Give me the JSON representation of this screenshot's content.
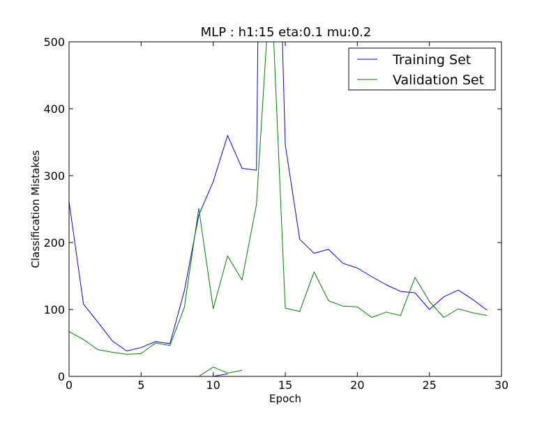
{
  "chart_data": {
    "type": "line",
    "title": "MLP : h1:15 eta:0.1 mu:0.2",
    "xlabel": "Epoch",
    "ylabel": "Classification Mistakes",
    "xlim": [
      0,
      30
    ],
    "ylim": [
      0,
      500
    ],
    "x_ticks": [
      "0",
      "5",
      "10",
      "15",
      "20",
      "25",
      "30"
    ],
    "y_ticks": [
      "0",
      "100",
      "200",
      "300",
      "400",
      "500"
    ],
    "grid": false,
    "legend_position": "top-right",
    "series": [
      {
        "name": "Training Set",
        "color": "#0000ff",
        "x": [
          0,
          1,
          2,
          3,
          4,
          5,
          6,
          7,
          8,
          9,
          10,
          11,
          12,
          13,
          13.1,
          14.8,
          15,
          16,
          17,
          18,
          19,
          20,
          21,
          22,
          23,
          24,
          25,
          26,
          27,
          28,
          29
        ],
        "y": [
          261,
          108,
          81,
          53,
          38,
          43,
          52,
          49,
          128,
          241,
          291,
          360,
          311,
          308,
          500,
          500,
          346,
          205,
          184,
          190,
          169,
          162,
          149,
          137,
          127,
          125,
          100,
          119,
          129,
          115,
          99
        ]
      },
      {
        "name": "Validation Set",
        "color": "#008000",
        "x": [
          0,
          1,
          2,
          3,
          4,
          5,
          6,
          7,
          8,
          9,
          10,
          11,
          12,
          13,
          13.7,
          14.2,
          15,
          16,
          17,
          18,
          19,
          20,
          21,
          22,
          23,
          24,
          25,
          26,
          27,
          28,
          29
        ],
        "y": [
          67,
          55,
          40,
          36,
          33,
          34,
          50,
          46,
          103,
          251,
          101,
          180,
          144,
          257,
          500,
          500,
          102,
          97,
          156,
          113,
          105,
          104,
          88,
          96,
          91,
          148,
          112,
          88,
          101,
          95,
          91
        ]
      },
      {
        "color": "#0000ff",
        "x": [
          10,
          11
        ],
        "y": [
          0,
          4
        ]
      },
      {
        "color": "#008000",
        "x": [
          9,
          10,
          11,
          12
        ],
        "y": [
          0,
          14,
          5,
          9
        ]
      }
    ]
  }
}
